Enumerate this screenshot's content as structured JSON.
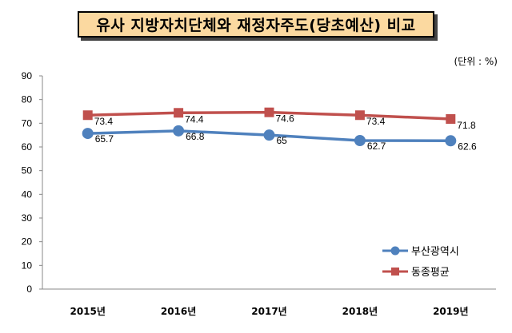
{
  "chart_data": {
    "type": "line",
    "title": "유사 지방자치단체와 재정자주도(당초예산) 비교",
    "unit": "(단위 : %)",
    "categories": [
      "2015년",
      "2016년",
      "2017년",
      "2018년",
      "2019년"
    ],
    "ylim": [
      0,
      90
    ],
    "yticks": [
      0,
      10,
      20,
      30,
      40,
      50,
      60,
      70,
      80,
      90
    ],
    "series": [
      {
        "name": "부산광역시",
        "values": [
          65.7,
          66.8,
          65,
          62.7,
          62.6
        ],
        "labels": [
          "65.7",
          "66.8",
          "65",
          "62.7",
          "62.6"
        ],
        "color": "#4f81bd",
        "marker": "circle"
      },
      {
        "name": "동종평균",
        "values": [
          73.4,
          74.4,
          74.6,
          73.4,
          71.8
        ],
        "labels": [
          "73.4",
          "74.4",
          "74.6",
          "73.4",
          "71.8"
        ],
        "color": "#c0504d",
        "marker": "square"
      }
    ],
    "legend_position": "bottom-right"
  }
}
